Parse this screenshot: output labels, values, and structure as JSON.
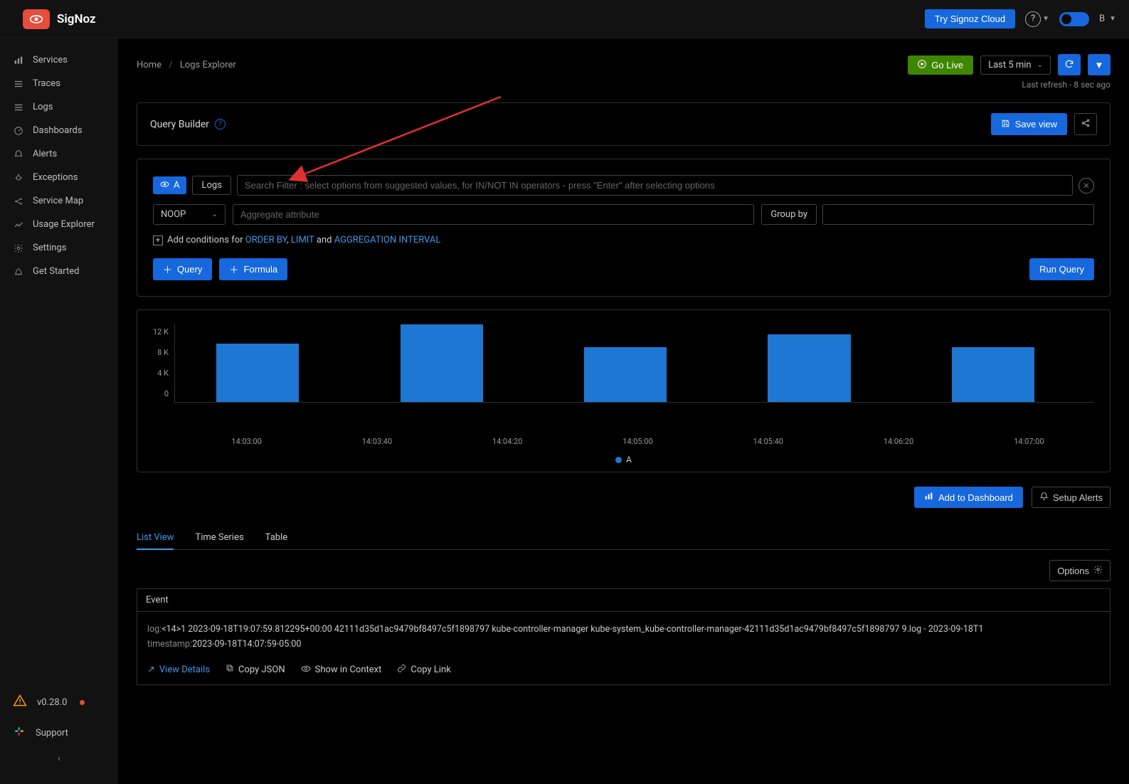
{
  "brand": {
    "name": "SigNoz"
  },
  "topbar": {
    "cloud_btn": "Try Signoz Cloud",
    "avatar_initial": "B"
  },
  "sidebar": {
    "items": [
      {
        "key": "services",
        "label": "Services",
        "icon": "bars"
      },
      {
        "key": "traces",
        "label": "Traces",
        "icon": "lines"
      },
      {
        "key": "logs",
        "label": "Logs",
        "icon": "lines"
      },
      {
        "key": "dashboards",
        "label": "Dashboards",
        "icon": "gauge"
      },
      {
        "key": "alerts",
        "label": "Alerts",
        "icon": "bell"
      },
      {
        "key": "exceptions",
        "label": "Exceptions",
        "icon": "bug"
      },
      {
        "key": "servicemap",
        "label": "Service Map",
        "icon": "share"
      },
      {
        "key": "usage",
        "label": "Usage Explorer",
        "icon": "chart"
      },
      {
        "key": "settings",
        "label": "Settings",
        "icon": "gear"
      },
      {
        "key": "getstarted",
        "label": "Get Started",
        "icon": "rocket"
      }
    ],
    "version": "v0.28.0",
    "support": "Support"
  },
  "breadcrumb": {
    "home": "Home",
    "current": "Logs Explorer"
  },
  "toolbar": {
    "go_live": "Go Live",
    "time_range": "Last 5 min",
    "last_refresh": "Last refresh - 8 sec ago"
  },
  "query_builder": {
    "title": "Query Builder",
    "save_view": "Save view",
    "tag": "A",
    "source": "Logs",
    "filter_placeholder": "Search Filter : select options from suggested values, for IN/NOT IN operators - press \"Enter\" after selecting options",
    "noop": "NOOP",
    "agg_placeholder": "Aggregate attribute",
    "group_by_label": "Group by",
    "conditions_prefix": "Add conditions for ",
    "order_by": "ORDER BY",
    "limit": "LIMIT",
    "and": " and ",
    "agg_interval": "AGGREGATION INTERVAL",
    "sep": ", ",
    "add_query": "Query",
    "add_formula": "Formula",
    "run_query": "Run Query"
  },
  "chart": {
    "y_ticks": [
      "12 K",
      "8 K",
      "4 K",
      "0"
    ],
    "y_max": 12000,
    "bars": [
      {
        "x_pct": 4.5,
        "value": 9000
      },
      {
        "x_pct": 24.5,
        "value": 12500
      },
      {
        "x_pct": 44.5,
        "value": 8500
      },
      {
        "x_pct": 64.5,
        "value": 10500
      },
      {
        "x_pct": 84.5,
        "value": 8500
      }
    ],
    "x_ticks": [
      "14:03:00",
      "14:03:40",
      "14:04:20",
      "14:05:00",
      "14:05:40",
      "14:06:20",
      "14:07:00"
    ],
    "legend": "A",
    "bar_color": "#1f77d4"
  },
  "actions": {
    "add_to_dashboard": "Add to Dashboard",
    "setup_alerts": "Setup Alerts"
  },
  "tabs": {
    "list_view": "List View",
    "time_series": "Time Series",
    "table": "Table",
    "options": "Options"
  },
  "event_table": {
    "header": "Event",
    "log_label": "log:",
    "log_value": "<14>1 2023-09-18T19:07:59.812295+00:00 42111d35d1ac9479bf8497c5f1898797 kube-controller-manager kube-system_kube-controller-manager-42111d35d1ac9479bf8497c5f1898797 9.log - 2023-09-18T1",
    "ts_label": "timestamp:",
    "ts_value": "2023-09-18T14:07:59-05:00",
    "view_details": "View Details",
    "copy_json": "Copy JSON",
    "show_context": "Show in Context",
    "copy_link": "Copy Link"
  }
}
